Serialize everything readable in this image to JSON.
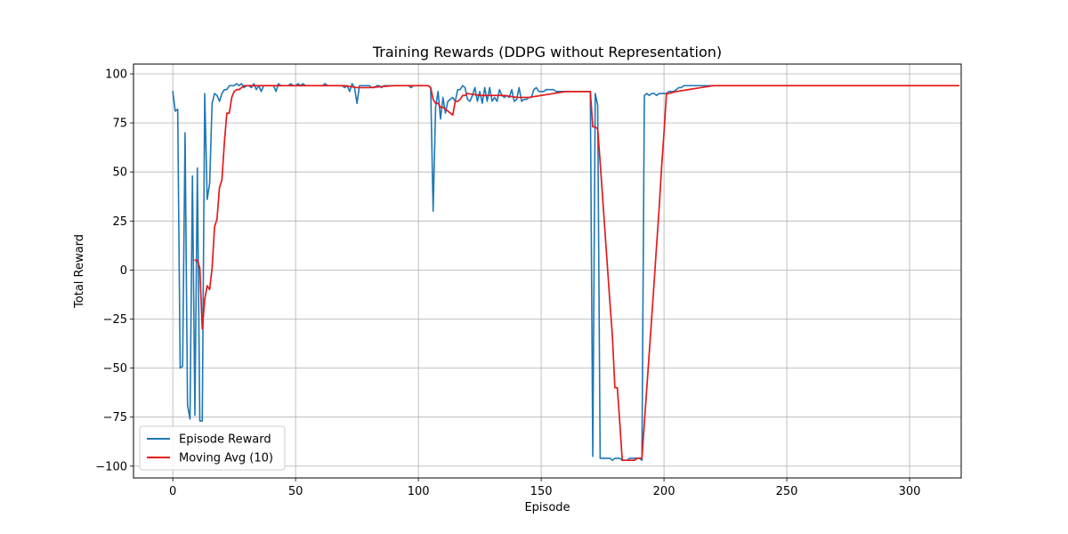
{
  "chart_data": {
    "type": "line",
    "title": "Training Rewards (DDPG without Representation)",
    "xlabel": "Episode",
    "ylabel": "Total Reward",
    "xlim": [
      -16,
      321
    ],
    "ylim": [
      -106,
      105
    ],
    "x_ticks": [
      0,
      50,
      100,
      150,
      200,
      250,
      300
    ],
    "y_ticks": [
      -100,
      -75,
      -50,
      -25,
      0,
      25,
      50,
      75,
      100
    ],
    "x_tick_labels": [
      "0",
      "50",
      "100",
      "150",
      "200",
      "250",
      "300"
    ],
    "y_tick_labels": [
      "−100",
      "−75",
      "−50",
      "−25",
      "0",
      "25",
      "50",
      "75",
      "100"
    ],
    "grid": true,
    "legend_position": "lower-left",
    "series": [
      {
        "name": "Episode Reward",
        "color": "#1f77b4",
        "points": [
          [
            0,
            91
          ],
          [
            1,
            81
          ],
          [
            2,
            82
          ],
          [
            3,
            -50
          ],
          [
            4,
            -49
          ],
          [
            5,
            70
          ],
          [
            6,
            -69
          ],
          [
            7,
            -76
          ],
          [
            8,
            48
          ],
          [
            9,
            -74
          ],
          [
            10,
            52
          ],
          [
            11,
            -77
          ],
          [
            12,
            -77
          ],
          [
            13,
            90
          ],
          [
            14,
            36
          ],
          [
            15,
            44
          ],
          [
            16,
            85
          ],
          [
            17,
            90
          ],
          [
            18,
            89
          ],
          [
            19,
            86
          ],
          [
            20,
            90
          ],
          [
            21,
            92
          ],
          [
            22,
            92
          ],
          [
            23,
            94
          ],
          [
            24,
            94
          ],
          [
            25,
            94
          ],
          [
            26,
            95
          ],
          [
            27,
            94
          ],
          [
            28,
            95
          ],
          [
            29,
            93
          ],
          [
            30,
            94
          ],
          [
            31,
            94
          ],
          [
            32,
            93
          ],
          [
            33,
            95
          ],
          [
            34,
            92
          ],
          [
            35,
            94
          ],
          [
            36,
            91
          ],
          [
            37,
            94
          ],
          [
            38,
            94
          ],
          [
            39,
            94
          ],
          [
            40,
            94
          ],
          [
            41,
            94
          ],
          [
            42,
            91
          ],
          [
            43,
            95
          ],
          [
            44,
            94
          ],
          [
            45,
            94
          ],
          [
            46,
            94
          ],
          [
            47,
            94
          ],
          [
            48,
            95
          ],
          [
            49,
            94
          ],
          [
            50,
            94
          ],
          [
            51,
            95
          ],
          [
            52,
            94
          ],
          [
            53,
            95
          ],
          [
            54,
            94
          ],
          [
            55,
            94
          ],
          [
            56,
            94
          ],
          [
            57,
            94
          ],
          [
            58,
            94
          ],
          [
            59,
            94
          ],
          [
            60,
            94
          ],
          [
            61,
            94
          ],
          [
            62,
            95
          ],
          [
            63,
            94
          ],
          [
            64,
            94
          ],
          [
            65,
            94
          ],
          [
            66,
            94
          ],
          [
            67,
            94
          ],
          [
            68,
            94
          ],
          [
            69,
            94
          ],
          [
            70,
            93
          ],
          [
            71,
            94
          ],
          [
            72,
            91
          ],
          [
            73,
            95
          ],
          [
            74,
            93
          ],
          [
            75,
            85
          ],
          [
            76,
            94
          ],
          [
            77,
            94
          ],
          [
            78,
            94
          ],
          [
            79,
            94
          ],
          [
            80,
            94
          ],
          [
            81,
            93
          ],
          [
            82,
            93
          ],
          [
            83,
            94
          ],
          [
            84,
            94
          ],
          [
            85,
            93
          ],
          [
            86,
            94
          ],
          [
            87,
            94
          ],
          [
            88,
            94
          ],
          [
            89,
            94
          ],
          [
            90,
            94
          ],
          [
            91,
            94
          ],
          [
            92,
            94
          ],
          [
            93,
            94
          ],
          [
            94,
            94
          ],
          [
            95,
            94
          ],
          [
            96,
            94
          ],
          [
            97,
            93
          ],
          [
            98,
            94
          ],
          [
            99,
            94
          ],
          [
            100,
            94
          ],
          [
            101,
            94
          ],
          [
            102,
            94
          ],
          [
            103,
            94
          ],
          [
            104,
            94
          ],
          [
            105,
            93
          ],
          [
            106,
            30
          ],
          [
            107,
            83
          ],
          [
            108,
            91
          ],
          [
            109,
            77
          ],
          [
            110,
            88
          ],
          [
            111,
            80
          ],
          [
            112,
            86
          ],
          [
            113,
            87
          ],
          [
            114,
            88
          ],
          [
            115,
            86
          ],
          [
            116,
            92
          ],
          [
            117,
            92
          ],
          [
            118,
            94
          ],
          [
            119,
            93
          ],
          [
            120,
            87
          ],
          [
            121,
            86
          ],
          [
            122,
            89
          ],
          [
            123,
            93
          ],
          [
            124,
            86
          ],
          [
            125,
            91
          ],
          [
            126,
            85
          ],
          [
            127,
            93
          ],
          [
            128,
            86
          ],
          [
            129,
            93
          ],
          [
            130,
            86
          ],
          [
            131,
            88
          ],
          [
            132,
            86
          ],
          [
            133,
            92
          ],
          [
            134,
            89
          ],
          [
            135,
            88
          ],
          [
            136,
            89
          ],
          [
            137,
            88
          ],
          [
            138,
            92
          ],
          [
            139,
            86
          ],
          [
            140,
            87
          ],
          [
            141,
            93
          ],
          [
            142,
            86
          ],
          [
            143,
            87
          ],
          [
            144,
            87
          ],
          [
            145,
            88
          ],
          [
            146,
            88
          ],
          [
            147,
            92
          ],
          [
            148,
            93
          ],
          [
            149,
            91
          ],
          [
            150,
            91
          ],
          [
            151,
            91
          ],
          [
            152,
            92
          ],
          [
            153,
            92
          ],
          [
            154,
            92
          ],
          [
            155,
            92
          ],
          [
            156,
            91
          ],
          [
            157,
            91
          ],
          [
            158,
            91
          ],
          [
            159,
            91
          ],
          [
            160,
            91
          ],
          [
            161,
            91
          ],
          [
            162,
            91
          ],
          [
            163,
            91
          ],
          [
            164,
            91
          ],
          [
            165,
            91
          ],
          [
            166,
            91
          ],
          [
            167,
            91
          ],
          [
            168,
            91
          ],
          [
            169,
            91
          ],
          [
            170,
            91
          ],
          [
            171,
            -95
          ],
          [
            172,
            90
          ],
          [
            173,
            84
          ],
          [
            174,
            -96
          ],
          [
            175,
            -96
          ],
          [
            176,
            -96
          ],
          [
            177,
            -96
          ],
          [
            178,
            -96
          ],
          [
            179,
            -97
          ],
          [
            180,
            -96
          ],
          [
            181,
            -96
          ],
          [
            182,
            -96
          ],
          [
            183,
            -97
          ],
          [
            184,
            -97
          ],
          [
            185,
            -97
          ],
          [
            186,
            -96
          ],
          [
            187,
            -96
          ],
          [
            188,
            -96
          ],
          [
            189,
            -96
          ],
          [
            190,
            -96
          ],
          [
            191,
            -97
          ],
          [
            192,
            89
          ],
          [
            193,
            90
          ],
          [
            194,
            89
          ],
          [
            195,
            90
          ],
          [
            196,
            90
          ],
          [
            197,
            89
          ],
          [
            198,
            90
          ],
          [
            199,
            90
          ],
          [
            200,
            90
          ],
          [
            201,
            90
          ],
          [
            202,
            91
          ],
          [
            203,
            91
          ],
          [
            204,
            91
          ],
          [
            205,
            92
          ],
          [
            206,
            93
          ],
          [
            207,
            93
          ],
          [
            208,
            94
          ],
          [
            209,
            94
          ],
          [
            210,
            94
          ],
          [
            211,
            94
          ],
          [
            212,
            94
          ],
          [
            213,
            94
          ],
          [
            214,
            94
          ],
          [
            215,
            94
          ],
          [
            216,
            94
          ],
          [
            217,
            94
          ],
          [
            218,
            94
          ],
          [
            219,
            94
          ],
          [
            220,
            94
          ],
          [
            230,
            94
          ],
          [
            240,
            94
          ],
          [
            250,
            94
          ],
          [
            260,
            94
          ],
          [
            270,
            94
          ],
          [
            280,
            94
          ],
          [
            290,
            94
          ],
          [
            300,
            94
          ],
          [
            310,
            94
          ],
          [
            320,
            94
          ]
        ]
      },
      {
        "name": "Moving Avg (10)",
        "color": "#e31a1c",
        "points": [
          [
            9,
            5
          ],
          [
            10,
            5
          ],
          [
            11,
            1
          ],
          [
            12,
            -30
          ],
          [
            13,
            -15
          ],
          [
            14,
            -8
          ],
          [
            15,
            -10
          ],
          [
            16,
            1
          ],
          [
            17,
            22
          ],
          [
            18,
            26
          ],
          [
            19,
            42
          ],
          [
            20,
            46
          ],
          [
            21,
            65
          ],
          [
            22,
            80
          ],
          [
            23,
            80
          ],
          [
            24,
            88
          ],
          [
            25,
            91
          ],
          [
            26,
            92
          ],
          [
            27,
            92
          ],
          [
            28,
            93
          ],
          [
            29,
            94
          ],
          [
            30,
            94
          ],
          [
            40,
            94
          ],
          [
            50,
            94
          ],
          [
            60,
            94
          ],
          [
            70,
            94
          ],
          [
            75,
            93
          ],
          [
            80,
            93
          ],
          [
            90,
            94
          ],
          [
            100,
            94
          ],
          [
            104,
            94
          ],
          [
            105,
            93
          ],
          [
            106,
            87
          ],
          [
            107,
            85
          ],
          [
            108,
            85
          ],
          [
            109,
            83
          ],
          [
            110,
            83
          ],
          [
            111,
            82
          ],
          [
            112,
            81
          ],
          [
            113,
            80
          ],
          [
            114,
            79
          ],
          [
            115,
            86
          ],
          [
            116,
            86
          ],
          [
            117,
            87
          ],
          [
            118,
            89
          ],
          [
            119,
            89
          ],
          [
            120,
            90
          ],
          [
            125,
            89
          ],
          [
            130,
            89
          ],
          [
            135,
            89
          ],
          [
            140,
            88
          ],
          [
            145,
            88
          ],
          [
            150,
            89
          ],
          [
            155,
            90
          ],
          [
            160,
            91
          ],
          [
            165,
            91
          ],
          [
            170,
            91
          ],
          [
            171,
            73
          ],
          [
            172,
            73
          ],
          [
            173,
            72
          ],
          [
            174,
            55
          ],
          [
            175,
            37
          ],
          [
            176,
            19
          ],
          [
            177,
            1
          ],
          [
            178,
            -17
          ],
          [
            179,
            -34
          ],
          [
            180,
            -60
          ],
          [
            181,
            -60
          ],
          [
            182,
            -78
          ],
          [
            183,
            -97
          ],
          [
            184,
            -97
          ],
          [
            185,
            -97
          ],
          [
            186,
            -97
          ],
          [
            187,
            -97
          ],
          [
            188,
            -97
          ],
          [
            189,
            -96
          ],
          [
            190,
            -96
          ],
          [
            191,
            -96
          ],
          [
            192,
            -78
          ],
          [
            193,
            -60
          ],
          [
            194,
            -42
          ],
          [
            195,
            -24
          ],
          [
            196,
            -6
          ],
          [
            197,
            13
          ],
          [
            198,
            31
          ],
          [
            199,
            52
          ],
          [
            200,
            70
          ],
          [
            201,
            90
          ],
          [
            202,
            90
          ],
          [
            205,
            91
          ],
          [
            210,
            92
          ],
          [
            215,
            93
          ],
          [
            220,
            94
          ],
          [
            230,
            94
          ],
          [
            250,
            94
          ],
          [
            270,
            94
          ],
          [
            290,
            94
          ],
          [
            300,
            94
          ],
          [
            310,
            94
          ],
          [
            320,
            94
          ]
        ]
      }
    ]
  }
}
